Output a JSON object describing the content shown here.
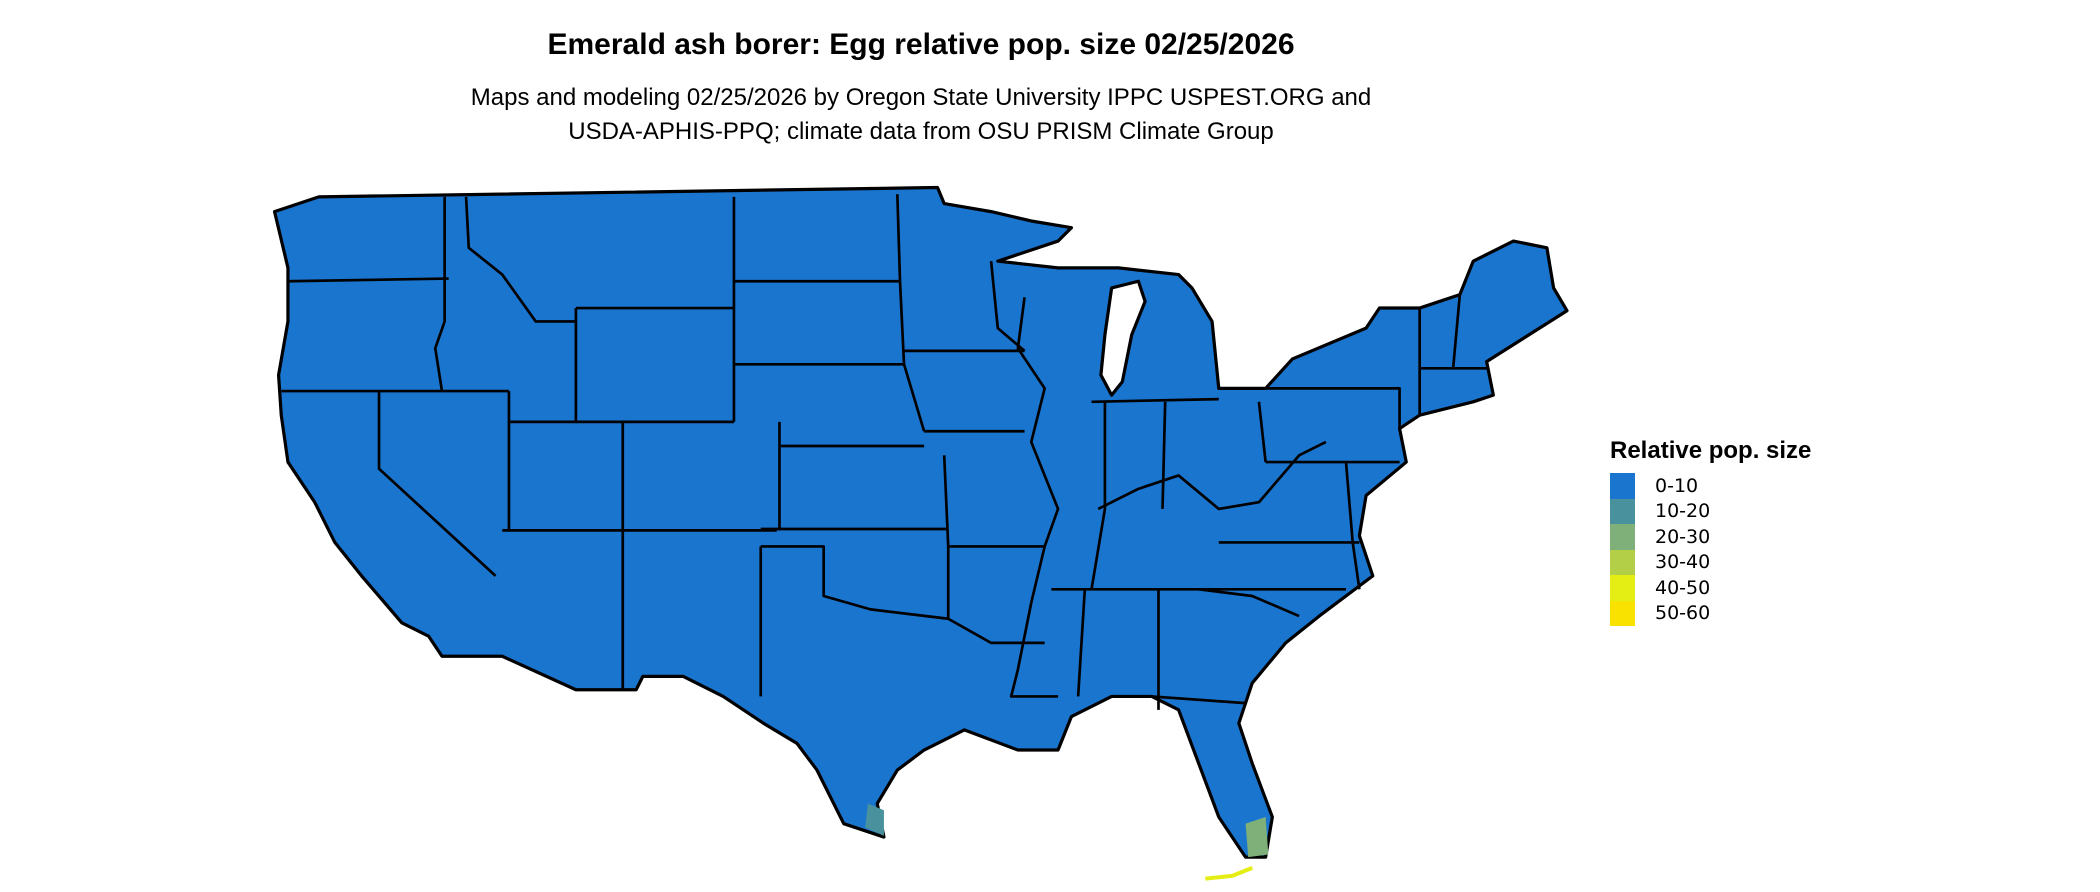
{
  "title": "Emerald ash borer: Egg relative pop. size 02/25/2026",
  "subtitle_line1": "Maps and modeling 02/25/2026 by Oregon State University IPPC USPEST.ORG and",
  "subtitle_line2": "USDA-APHIS-PPQ; climate data from OSU PRISM Climate Group",
  "map": {
    "region": "Contiguous United States",
    "fill_color": "#1a75cf",
    "border_color": "#000000",
    "dominant_class": "0-10",
    "notes_visible": "higher classes appear only at southern Florida and southern Texas coast"
  },
  "legend": {
    "title": "Relative pop. size",
    "items": [
      {
        "label": "0-10",
        "color": "#1a75cf"
      },
      {
        "label": "10-20",
        "color": "#4a919e"
      },
      {
        "label": "20-30",
        "color": "#7fb079"
      },
      {
        "label": "30-40",
        "color": "#b3cf47"
      },
      {
        "label": "40-50",
        "color": "#e5ee14"
      },
      {
        "label": "50-60",
        "color": "#f9e100"
      }
    ]
  }
}
